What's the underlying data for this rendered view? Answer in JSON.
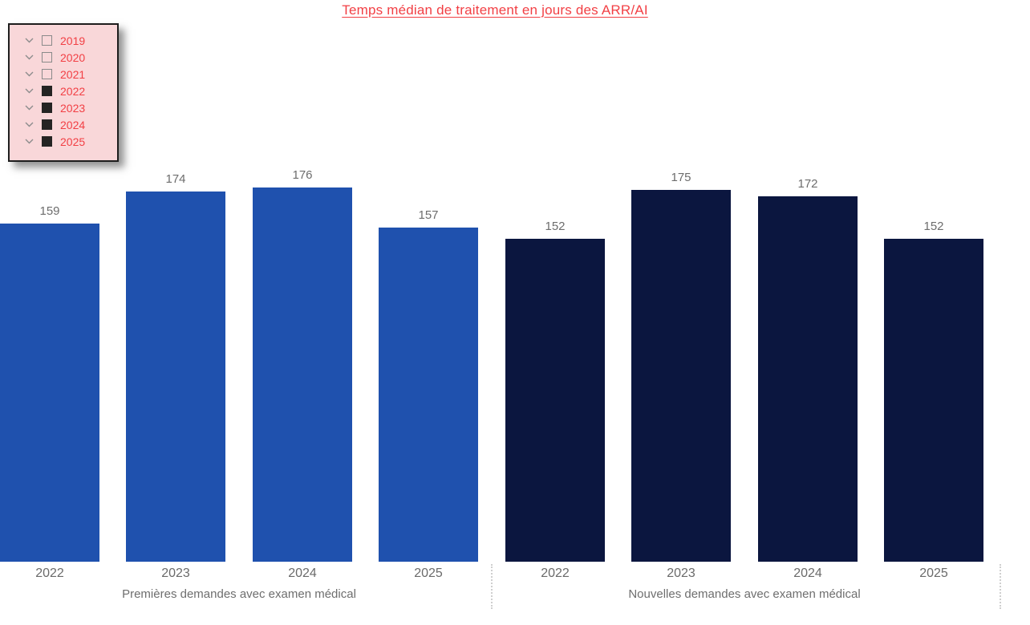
{
  "title": "Temps médian de traitement en jours des ARR/AI",
  "colors": {
    "accent_red": "#F23F44",
    "bar_blue": "#1F51AE",
    "bar_navy": "#0B163F",
    "panel_pink": "#F9D7D9",
    "label_gray": "#6D6D6D"
  },
  "filter_panel": {
    "items": [
      {
        "label": "2019",
        "checked": false
      },
      {
        "label": "2020",
        "checked": false
      },
      {
        "label": "2021",
        "checked": false
      },
      {
        "label": "2022",
        "checked": true
      },
      {
        "label": "2023",
        "checked": true
      },
      {
        "label": "2024",
        "checked": true
      },
      {
        "label": "2025",
        "checked": true
      }
    ]
  },
  "chart_data": {
    "type": "bar",
    "title": "Temps médian de traitement en jours des ARR/AI",
    "categories": [
      "2022",
      "2023",
      "2024",
      "2025"
    ],
    "series": [
      {
        "name": "Premières demandes avec examen médical",
        "values": [
          159,
          174,
          176,
          157
        ],
        "color": "#1F51AE"
      },
      {
        "name": "Nouvelles demandes avec examen médical",
        "values": [
          152,
          175,
          172,
          152
        ],
        "color": "#0B163F"
      }
    ],
    "ylim": [
      0,
      185
    ],
    "grid": false,
    "value_labels": true,
    "legend_position": "top-left",
    "layout": "grouped-side-by-side"
  }
}
